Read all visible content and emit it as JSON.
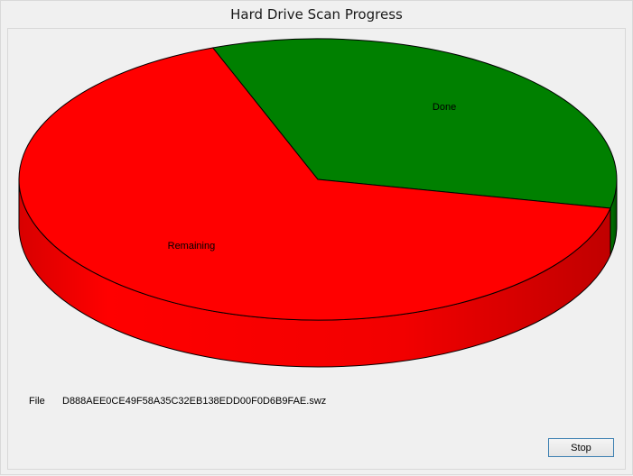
{
  "window": {
    "title": "Hard Drive Scan Progress"
  },
  "chart_data": {
    "type": "pie",
    "style": "3d",
    "slices": [
      {
        "label": "Done",
        "value": 34,
        "color": "#008000"
      },
      {
        "label": "Remaining",
        "value": 66,
        "color": "#ff0000"
      }
    ]
  },
  "file": {
    "label": "File",
    "name": "D888AEE0CE49F58A35C32EB138EDD00F0D6B9FAE.swz"
  },
  "buttons": {
    "stop_label": "Stop"
  }
}
